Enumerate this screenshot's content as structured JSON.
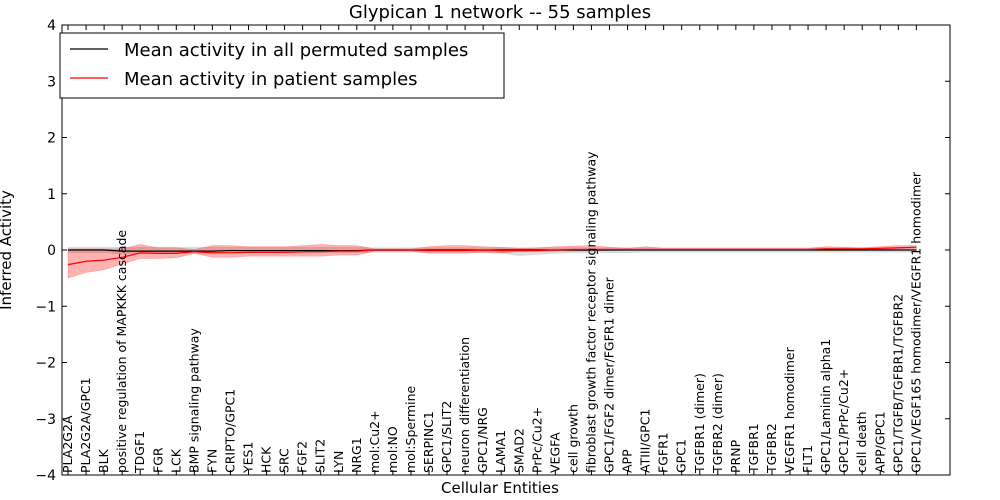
{
  "chart_data": {
    "type": "line",
    "title": "Glypican 1 network -- 55 samples",
    "xlabel": "Cellular Entities",
    "ylabel": "Inferred Activity",
    "ylim": [
      -4,
      4
    ],
    "yticks": [
      "4",
      "3",
      "2",
      "1",
      "0",
      "−1",
      "−2",
      "−3",
      "−4"
    ],
    "ytick_values": [
      4,
      3,
      2,
      1,
      0,
      -1,
      -2,
      -3,
      -4
    ],
    "grid": false,
    "legend_position": "top-left",
    "categories": [
      "PLA2G2A",
      "PLA2G2A/GPC1",
      "BLK",
      "positive regulation of MAPKKK cascade",
      "TDGF1",
      "FGR",
      "LCK",
      "BMP signaling pathway",
      "FYN",
      "CRIPTO/GPC1",
      "YES1",
      "HCK",
      "SRC",
      "FGF2",
      "SLIT2",
      "LYN",
      "NRG1",
      "mol:Cu2+",
      "mol:NO",
      "mol:Spermine",
      "SERPINC1",
      "GPC1/SLIT2",
      "neuron differentiation",
      "GPC1/NRG",
      "LAMA1",
      "SMAD2",
      "PrPc/Cu2+",
      "VEGFA",
      "cell growth",
      "fibroblast growth factor receptor signaling pathway",
      "GPC1/FGF2 dimer/FGFR1 dimer",
      "APP",
      "ATIII/GPC1",
      "FGFR1",
      "GPC1",
      "TGFBR1 (dimer)",
      "TGFBR2 (dimer)",
      "PRNP",
      "TGFBR1",
      "TGFBR2",
      "VEGFR1 homodimer",
      "FLT1",
      "GPC1/Laminin alpha1",
      "GPC1/PrPc/Cu2+",
      "cell death",
      "APP/GPC1",
      "GPC1/TGFB/TGFBR1/TGFBR2",
      "GPC1/VEGF165 homodimer/VEGFR1 homodimer"
    ],
    "series": [
      {
        "name": "Mean activity in all permuted samples",
        "color": "#000000",
        "values": [
          0,
          0,
          0,
          -0.02,
          -0.02,
          -0.02,
          -0.02,
          -0.02,
          -0.02,
          -0.01,
          -0.01,
          -0.01,
          -0.01,
          -0.01,
          -0.01,
          -0.01,
          -0.01,
          0,
          0,
          0,
          0,
          0,
          0,
          0,
          0,
          0,
          0,
          0,
          0,
          0,
          0,
          0,
          0,
          0,
          0,
          0,
          0,
          0,
          0,
          0,
          0,
          0,
          0,
          0,
          0,
          0,
          0,
          0
        ],
        "band_low": [
          -0.05,
          -0.05,
          -0.05,
          -0.07,
          -0.07,
          -0.06,
          -0.06,
          -0.06,
          -0.06,
          -0.05,
          -0.05,
          -0.05,
          -0.05,
          -0.05,
          -0.05,
          -0.05,
          -0.05,
          -0.04,
          -0.04,
          -0.04,
          -0.04,
          -0.04,
          -0.04,
          -0.05,
          -0.06,
          -0.1,
          -0.08,
          -0.06,
          -0.05,
          -0.05,
          -0.05,
          -0.05,
          -0.04,
          -0.04,
          -0.04,
          -0.04,
          -0.04,
          -0.04,
          -0.04,
          -0.04,
          -0.04,
          -0.04,
          -0.04,
          -0.04,
          -0.04,
          -0.04,
          -0.04,
          -0.04
        ],
        "band_high": [
          0.05,
          0.05,
          0.05,
          0.05,
          0.05,
          0.05,
          0.05,
          0.05,
          0.05,
          0.05,
          0.05,
          0.05,
          0.05,
          0.05,
          0.05,
          0.05,
          0.05,
          0.04,
          0.04,
          0.04,
          0.04,
          0.04,
          0.04,
          0.04,
          0.04,
          0.04,
          0.04,
          0.04,
          0.04,
          0.04,
          0.04,
          0.04,
          0.04,
          0.04,
          0.04,
          0.04,
          0.04,
          0.04,
          0.04,
          0.04,
          0.04,
          0.04,
          0.04,
          0.04,
          0.04,
          0.04,
          0.04,
          0.04
        ]
      },
      {
        "name": "Mean activity in patient samples",
        "color": "#ff0000",
        "values": [
          -0.26,
          -0.2,
          -0.18,
          -0.13,
          -0.05,
          -0.06,
          -0.06,
          -0.03,
          -0.05,
          -0.05,
          -0.04,
          -0.04,
          -0.04,
          -0.03,
          -0.03,
          -0.02,
          -0.02,
          0,
          0,
          0,
          -0.01,
          -0.01,
          -0.01,
          0,
          -0.01,
          -0.01,
          -0.01,
          0,
          0.01,
          0.01,
          0.01,
          0.01,
          0.01,
          0.01,
          0.01,
          0.01,
          0.01,
          0.01,
          0.01,
          0.01,
          0.01,
          0.01,
          0.02,
          0.02,
          0.02,
          0.03,
          0.04,
          0.05
        ],
        "band_low": [
          -0.5,
          -0.4,
          -0.35,
          -0.25,
          -0.15,
          -0.15,
          -0.14,
          -0.06,
          -0.13,
          -0.13,
          -0.11,
          -0.11,
          -0.11,
          -0.11,
          -0.11,
          -0.09,
          -0.09,
          -0.02,
          -0.02,
          -0.02,
          -0.06,
          -0.06,
          -0.06,
          -0.04,
          -0.05,
          -0.03,
          -0.03,
          -0.02,
          -0.02,
          -0.02,
          -0.01,
          0,
          0,
          0,
          0,
          0,
          0,
          0,
          0,
          0,
          0,
          0,
          0,
          0,
          0,
          0.01,
          0.02,
          0.03
        ],
        "band_high": [
          0.02,
          0.02,
          0.02,
          0.02,
          0.1,
          0.04,
          0.04,
          0.01,
          0.08,
          0.08,
          0.06,
          0.06,
          0.06,
          0.08,
          0.1,
          0.08,
          0.08,
          0.02,
          0.02,
          0.02,
          0.06,
          0.08,
          0.08,
          0.06,
          0.05,
          0.03,
          0.04,
          0.06,
          0.07,
          0.08,
          0.05,
          0.03,
          0.06,
          0.03,
          0.03,
          0.03,
          0.03,
          0.03,
          0.03,
          0.03,
          0.03,
          0.03,
          0.06,
          0.05,
          0.04,
          0.06,
          0.08,
          0.08
        ]
      }
    ]
  }
}
